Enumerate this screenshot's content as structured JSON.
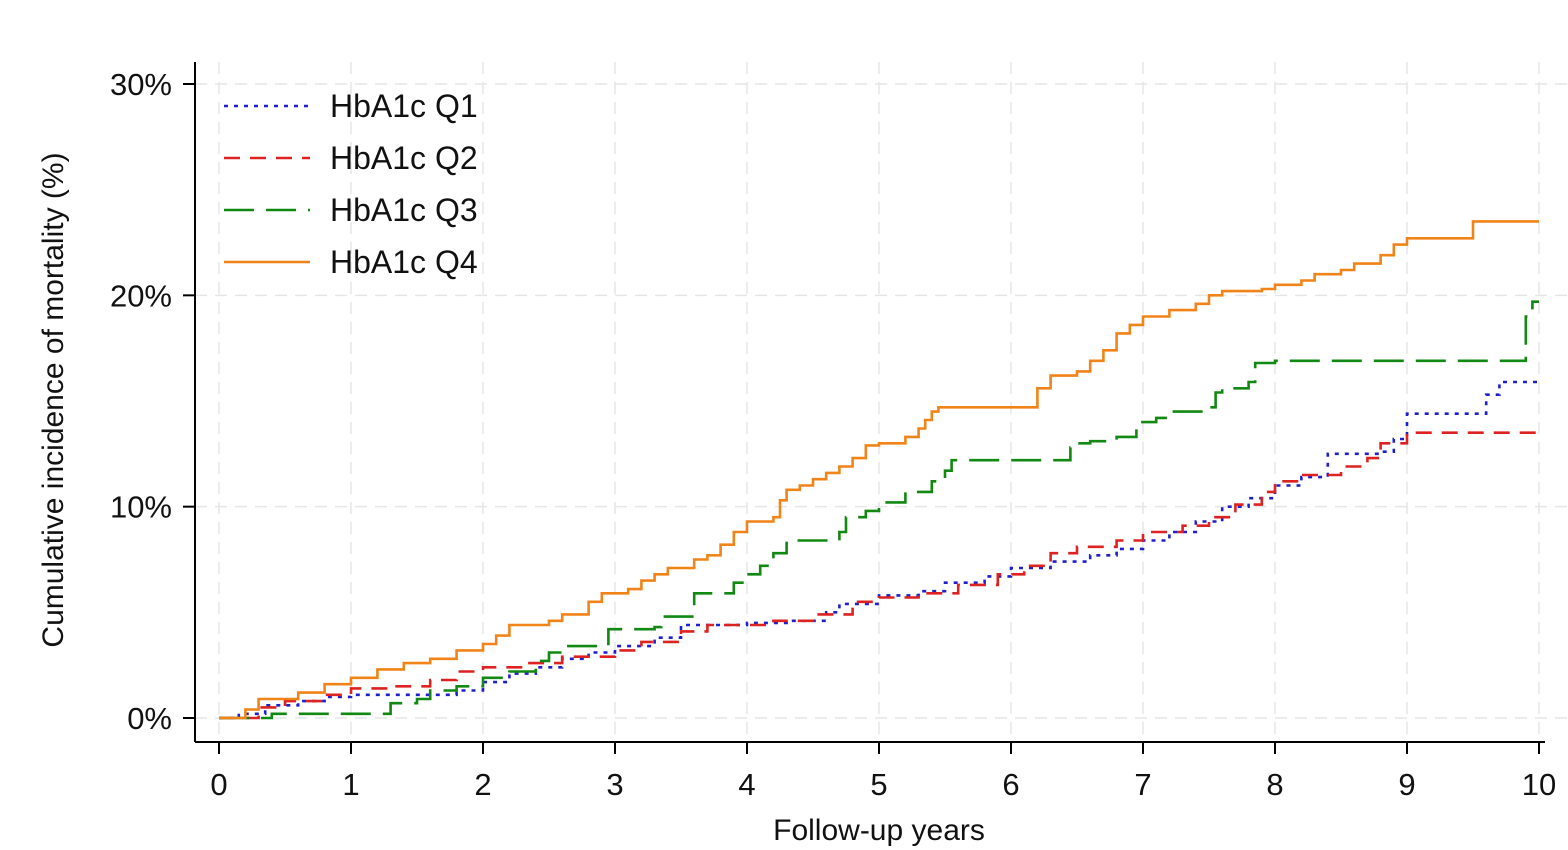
{
  "chart_data": {
    "type": "line",
    "step": true,
    "xlabel": "Follow-up years",
    "ylabel": "Cumulative incidence of mortality (%)",
    "xlim": [
      0,
      10
    ],
    "ylim": [
      0,
      30
    ],
    "x_ticks": [
      {
        "value": 0,
        "label": "0"
      },
      {
        "value": 1,
        "label": "1"
      },
      {
        "value": 2,
        "label": "2"
      },
      {
        "value": 3,
        "label": "3"
      },
      {
        "value": 4,
        "label": "4"
      },
      {
        "value": 5,
        "label": "5"
      },
      {
        "value": 6,
        "label": "6"
      },
      {
        "value": 7,
        "label": "7"
      },
      {
        "value": 8,
        "label": "8"
      },
      {
        "value": 9,
        "label": "9"
      },
      {
        "value": 10,
        "label": "10"
      }
    ],
    "y_ticks": [
      {
        "value": 0,
        "label": "0%"
      },
      {
        "value": 10,
        "label": "10%"
      },
      {
        "value": 20,
        "label": "20%"
      },
      {
        "value": 30,
        "label": "30%"
      }
    ],
    "grid": true,
    "legend_position": "top-left",
    "series": [
      {
        "name": "HbA1c Q1",
        "color": "#1f1fcc",
        "dash": "dotted",
        "points": [
          [
            0,
            0
          ],
          [
            0.15,
            0.2
          ],
          [
            0.35,
            0.6
          ],
          [
            0.6,
            0.8
          ],
          [
            0.8,
            1.0
          ],
          [
            1.0,
            1.1
          ],
          [
            1.6,
            1.1
          ],
          [
            1.8,
            1.3
          ],
          [
            2.0,
            1.7
          ],
          [
            2.2,
            2.1
          ],
          [
            2.4,
            2.4
          ],
          [
            2.6,
            2.8
          ],
          [
            2.8,
            3.1
          ],
          [
            3.0,
            3.4
          ],
          [
            3.3,
            3.8
          ],
          [
            3.5,
            4.4
          ],
          [
            3.8,
            4.4
          ],
          [
            4.0,
            4.5
          ],
          [
            4.3,
            4.6
          ],
          [
            4.6,
            5.0
          ],
          [
            4.7,
            5.4
          ],
          [
            5.0,
            5.8
          ],
          [
            5.3,
            6.0
          ],
          [
            5.5,
            6.4
          ],
          [
            5.8,
            6.7
          ],
          [
            6.0,
            7.1
          ],
          [
            6.3,
            7.4
          ],
          [
            6.6,
            7.7
          ],
          [
            6.8,
            8.0
          ],
          [
            7.0,
            8.4
          ],
          [
            7.2,
            8.8
          ],
          [
            7.4,
            9.3
          ],
          [
            7.6,
            10.0
          ],
          [
            7.8,
            10.4
          ],
          [
            8.0,
            11.0
          ],
          [
            8.2,
            11.4
          ],
          [
            8.4,
            12.5
          ],
          [
            8.8,
            12.6
          ],
          [
            8.9,
            13.2
          ],
          [
            9.0,
            14.4
          ],
          [
            9.5,
            14.4
          ],
          [
            9.6,
            15.3
          ],
          [
            9.7,
            15.9
          ],
          [
            10.0,
            15.9
          ]
        ]
      },
      {
        "name": "HbA1c Q2",
        "color": "#dd2222",
        "dash": "dashed",
        "points": [
          [
            0,
            0
          ],
          [
            0.3,
            0.5
          ],
          [
            0.5,
            0.8
          ],
          [
            0.8,
            1.1
          ],
          [
            1.0,
            1.4
          ],
          [
            1.3,
            1.5
          ],
          [
            1.6,
            1.8
          ],
          [
            1.8,
            2.2
          ],
          [
            2.0,
            2.4
          ],
          [
            2.3,
            2.6
          ],
          [
            2.6,
            2.9
          ],
          [
            3.0,
            3.2
          ],
          [
            3.2,
            3.6
          ],
          [
            3.5,
            4.1
          ],
          [
            3.7,
            4.4
          ],
          [
            4.0,
            4.4
          ],
          [
            4.2,
            4.6
          ],
          [
            4.5,
            4.9
          ],
          [
            4.8,
            5.5
          ],
          [
            5.0,
            5.7
          ],
          [
            5.3,
            5.9
          ],
          [
            5.6,
            6.3
          ],
          [
            5.9,
            6.8
          ],
          [
            6.1,
            7.2
          ],
          [
            6.3,
            7.8
          ],
          [
            6.5,
            8.1
          ],
          [
            6.8,
            8.4
          ],
          [
            7.0,
            8.8
          ],
          [
            7.3,
            9.1
          ],
          [
            7.5,
            9.5
          ],
          [
            7.7,
            10.1
          ],
          [
            7.9,
            10.7
          ],
          [
            8.0,
            11.2
          ],
          [
            8.2,
            11.5
          ],
          [
            8.5,
            11.9
          ],
          [
            8.7,
            12.3
          ],
          [
            8.8,
            13.0
          ],
          [
            9.0,
            13.5
          ],
          [
            10.0,
            13.5
          ]
        ]
      },
      {
        "name": "HbA1c Q3",
        "color": "#118811",
        "dash": "longdash",
        "points": [
          [
            0,
            0
          ],
          [
            0.4,
            0.2
          ],
          [
            1.15,
            0.2
          ],
          [
            1.3,
            0.7
          ],
          [
            1.5,
            0.9
          ],
          [
            1.6,
            1.3
          ],
          [
            1.8,
            1.5
          ],
          [
            2.0,
            1.9
          ],
          [
            2.2,
            2.2
          ],
          [
            2.4,
            2.7
          ],
          [
            2.5,
            3.1
          ],
          [
            2.6,
            3.4
          ],
          [
            2.9,
            3.5
          ],
          [
            2.95,
            4.2
          ],
          [
            3.3,
            4.3
          ],
          [
            3.35,
            4.8
          ],
          [
            3.6,
            5.9
          ],
          [
            3.7,
            5.9
          ],
          [
            3.9,
            6.4
          ],
          [
            4.0,
            6.8
          ],
          [
            4.1,
            7.2
          ],
          [
            4.2,
            7.8
          ],
          [
            4.3,
            8.4
          ],
          [
            4.6,
            8.4
          ],
          [
            4.7,
            8.8
          ],
          [
            4.75,
            9.5
          ],
          [
            4.9,
            9.8
          ],
          [
            5.0,
            10.2
          ],
          [
            5.2,
            10.7
          ],
          [
            5.4,
            11.2
          ],
          [
            5.5,
            11.7
          ],
          [
            5.55,
            12.2
          ],
          [
            5.9,
            12.2
          ],
          [
            6.4,
            12.2
          ],
          [
            6.45,
            12.8
          ],
          [
            6.5,
            13.0
          ],
          [
            6.6,
            13.1
          ],
          [
            6.8,
            13.3
          ],
          [
            6.95,
            14.0
          ],
          [
            7.1,
            14.2
          ],
          [
            7.2,
            14.5
          ],
          [
            7.5,
            14.7
          ],
          [
            7.55,
            15.4
          ],
          [
            7.6,
            15.6
          ],
          [
            7.8,
            15.9
          ],
          [
            7.85,
            16.8
          ],
          [
            8.0,
            16.9
          ],
          [
            9.85,
            16.9
          ],
          [
            9.9,
            19.0
          ],
          [
            9.95,
            19.7
          ],
          [
            10.0,
            19.7
          ]
        ]
      },
      {
        "name": "HbA1c Q4",
        "color": "#f08418",
        "dash": "solid",
        "points": [
          [
            0,
            0
          ],
          [
            0.2,
            0.4
          ],
          [
            0.3,
            0.9
          ],
          [
            0.6,
            1.2
          ],
          [
            0.8,
            1.6
          ],
          [
            1.0,
            1.9
          ],
          [
            1.2,
            2.3
          ],
          [
            1.4,
            2.6
          ],
          [
            1.6,
            2.8
          ],
          [
            1.8,
            3.2
          ],
          [
            2.0,
            3.5
          ],
          [
            2.1,
            3.9
          ],
          [
            2.2,
            4.4
          ],
          [
            2.5,
            4.6
          ],
          [
            2.6,
            4.9
          ],
          [
            2.8,
            5.5
          ],
          [
            2.9,
            5.9
          ],
          [
            3.1,
            6.1
          ],
          [
            3.2,
            6.5
          ],
          [
            3.3,
            6.8
          ],
          [
            3.4,
            7.1
          ],
          [
            3.6,
            7.5
          ],
          [
            3.7,
            7.7
          ],
          [
            3.8,
            8.2
          ],
          [
            3.9,
            8.8
          ],
          [
            4.0,
            9.3
          ],
          [
            4.2,
            9.5
          ],
          [
            4.25,
            10.3
          ],
          [
            4.3,
            10.8
          ],
          [
            4.4,
            11.0
          ],
          [
            4.5,
            11.3
          ],
          [
            4.6,
            11.6
          ],
          [
            4.7,
            11.9
          ],
          [
            4.8,
            12.3
          ],
          [
            4.9,
            12.9
          ],
          [
            5.0,
            13.0
          ],
          [
            5.2,
            13.3
          ],
          [
            5.3,
            13.7
          ],
          [
            5.35,
            14.1
          ],
          [
            5.4,
            14.5
          ],
          [
            5.45,
            14.7
          ],
          [
            5.6,
            14.7
          ],
          [
            6.15,
            14.7
          ],
          [
            6.2,
            15.6
          ],
          [
            6.3,
            16.2
          ],
          [
            6.5,
            16.4
          ],
          [
            6.6,
            16.9
          ],
          [
            6.7,
            17.4
          ],
          [
            6.8,
            18.2
          ],
          [
            6.9,
            18.6
          ],
          [
            7.0,
            19.0
          ],
          [
            7.2,
            19.3
          ],
          [
            7.4,
            19.6
          ],
          [
            7.5,
            20.0
          ],
          [
            7.6,
            20.2
          ],
          [
            7.9,
            20.3
          ],
          [
            8.0,
            20.5
          ],
          [
            8.2,
            20.7
          ],
          [
            8.3,
            21.0
          ],
          [
            8.5,
            21.2
          ],
          [
            8.6,
            21.5
          ],
          [
            8.8,
            21.9
          ],
          [
            8.9,
            22.4
          ],
          [
            9.0,
            22.7
          ],
          [
            9.5,
            23.5
          ],
          [
            10.0,
            23.5
          ]
        ]
      }
    ]
  }
}
